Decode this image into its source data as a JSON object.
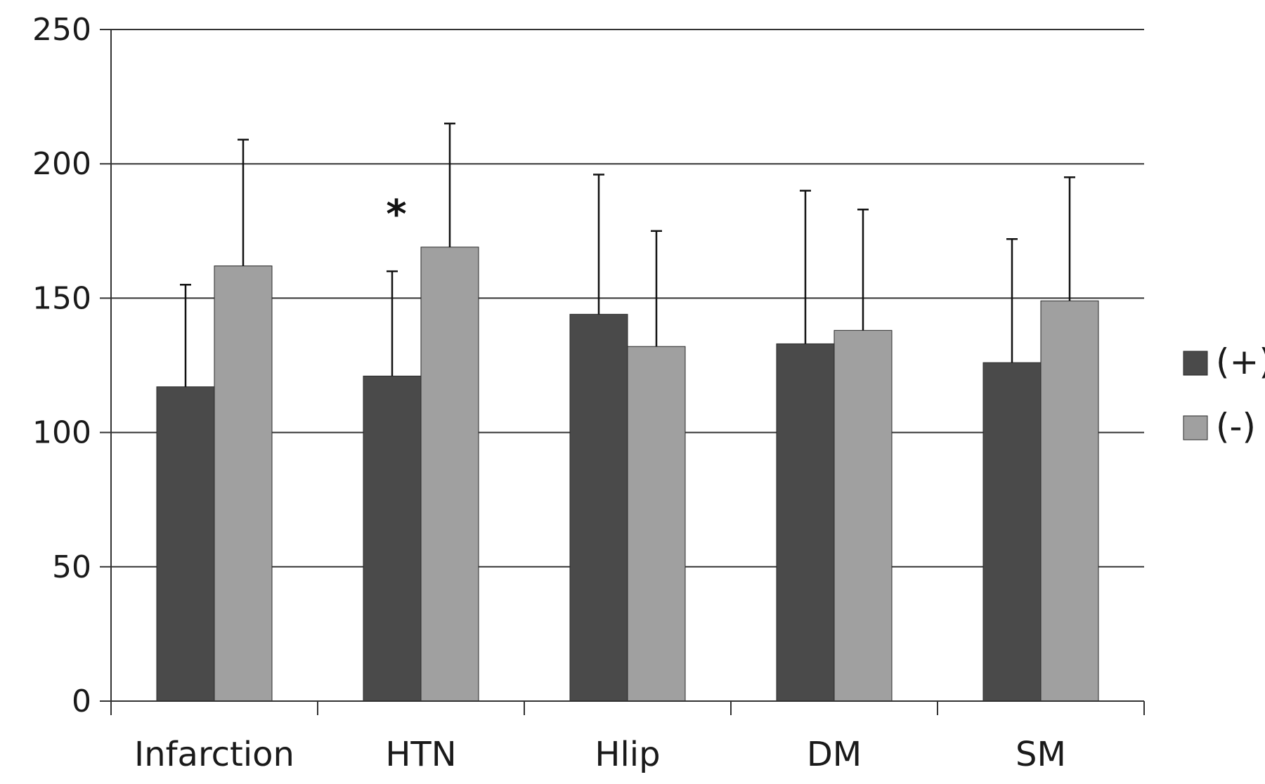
{
  "chart_data": {
    "type": "bar",
    "title": "",
    "xlabel": "",
    "ylabel": "",
    "categories": [
      "Infarction",
      "HTN",
      "Hlip",
      "DM",
      "SM"
    ],
    "series": [
      {
        "name": "(+)",
        "color": "#4a4a4a",
        "values": [
          117,
          121,
          144,
          133,
          126
        ],
        "error": [
          38,
          39,
          52,
          57,
          46
        ]
      },
      {
        "name": "(-)",
        "color": "#a0a0a0",
        "values": [
          162,
          169,
          132,
          138,
          149
        ],
        "error": [
          47,
          46,
          43,
          45,
          46
        ]
      }
    ],
    "ylim": [
      0,
      250
    ],
    "yticks": [
      0,
      50,
      100,
      150,
      200,
      250
    ],
    "grid": true,
    "legend_position": "right",
    "annotations": [
      {
        "text": "*",
        "category": "HTN"
      }
    ]
  }
}
